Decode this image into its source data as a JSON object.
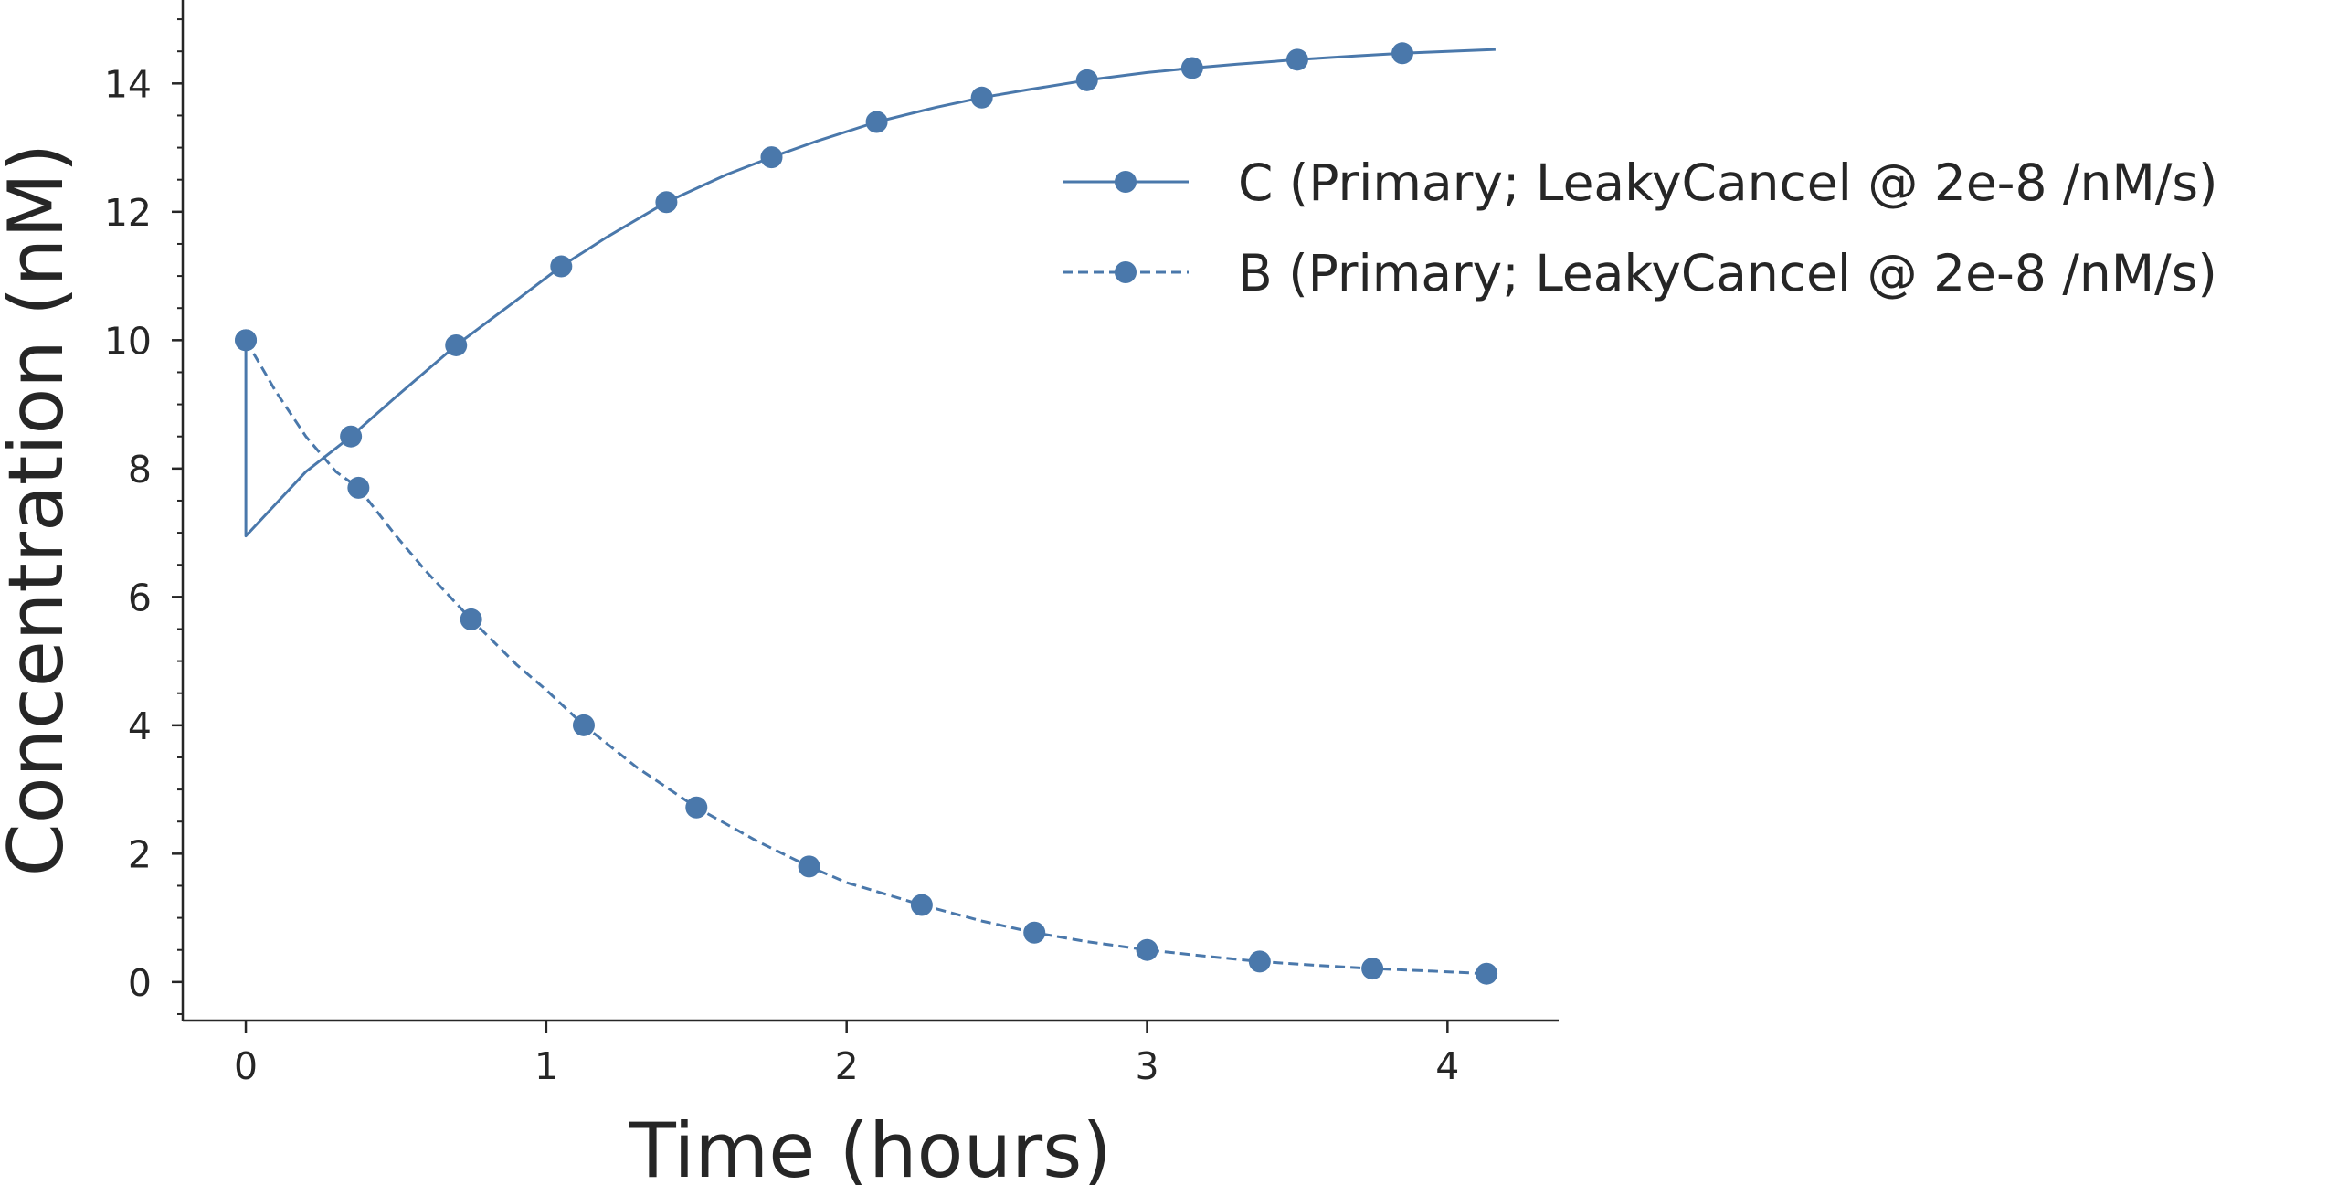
{
  "chart_data": {
    "type": "line",
    "title": "",
    "xlabel": "Time (hours)",
    "ylabel": "Concentration (nM)",
    "xlim": [
      -0.21,
      4.37
    ],
    "ylim": [
      -0.6,
      15.3
    ],
    "xticks": [
      0,
      1,
      2,
      3,
      4
    ],
    "yticks": [
      0,
      2,
      4,
      6,
      8,
      10,
      12,
      14
    ],
    "y_minor_step": 0.5,
    "grid": false,
    "legend_position": "top-right",
    "color": "#4a78ab",
    "series": [
      {
        "name": "C (Primary; LeakyCancel @ 2e-8 /nM/s)",
        "linestyle": "solid",
        "x": [
          0,
          0.0,
          0.1,
          0.2,
          0.35,
          0.5,
          0.7,
          0.9,
          1.05,
          1.2,
          1.4,
          1.6,
          1.75,
          1.9,
          2.1,
          2.3,
          2.45,
          2.6,
          2.8,
          3.0,
          3.15,
          3.3,
          3.5,
          3.7,
          3.85,
          4.0,
          4.16
        ],
        "y": [
          10.0,
          6.95,
          7.45,
          7.95,
          8.5,
          9.12,
          9.92,
          10.62,
          11.15,
          11.6,
          12.15,
          12.58,
          12.85,
          13.1,
          13.4,
          13.63,
          13.78,
          13.9,
          14.05,
          14.17,
          14.24,
          14.3,
          14.37,
          14.43,
          14.47,
          14.5,
          14.53
        ],
        "markers": {
          "x": [
            0,
            0.35,
            0.7,
            1.05,
            1.4,
            1.75,
            2.1,
            2.45,
            2.8,
            3.15,
            3.5,
            3.85
          ],
          "y": [
            10.0,
            8.5,
            9.92,
            11.15,
            12.15,
            12.85,
            13.4,
            13.78,
            14.05,
            14.24,
            14.37,
            14.47
          ]
        }
      },
      {
        "name": "B (Primary; LeakyCancel @ 2e-8 /nM/s)",
        "linestyle": "dashed",
        "x": [
          0,
          0.1,
          0.2,
          0.3,
          0.375,
          0.5,
          0.6,
          0.75,
          0.9,
          1.0,
          1.125,
          1.3,
          1.5,
          1.7,
          1.875,
          2.0,
          2.25,
          2.45,
          2.625,
          2.8,
          3.0,
          3.2,
          3.375,
          3.6,
          3.75,
          3.95,
          4.13
        ],
        "y": [
          10.0,
          9.2,
          8.5,
          7.95,
          7.7,
          6.95,
          6.4,
          5.65,
          4.95,
          4.55,
          4.0,
          3.35,
          2.72,
          2.2,
          1.8,
          1.55,
          1.2,
          0.95,
          0.77,
          0.63,
          0.5,
          0.4,
          0.32,
          0.25,
          0.21,
          0.17,
          0.13
        ],
        "markers": {
          "x": [
            0,
            0.375,
            0.75,
            1.125,
            1.5,
            1.875,
            2.25,
            2.625,
            3.0,
            3.375,
            3.75,
            4.13
          ],
          "y": [
            10.0,
            7.7,
            5.65,
            4.0,
            2.72,
            1.8,
            1.2,
            0.77,
            0.5,
            0.32,
            0.21,
            0.13
          ]
        }
      }
    ]
  }
}
